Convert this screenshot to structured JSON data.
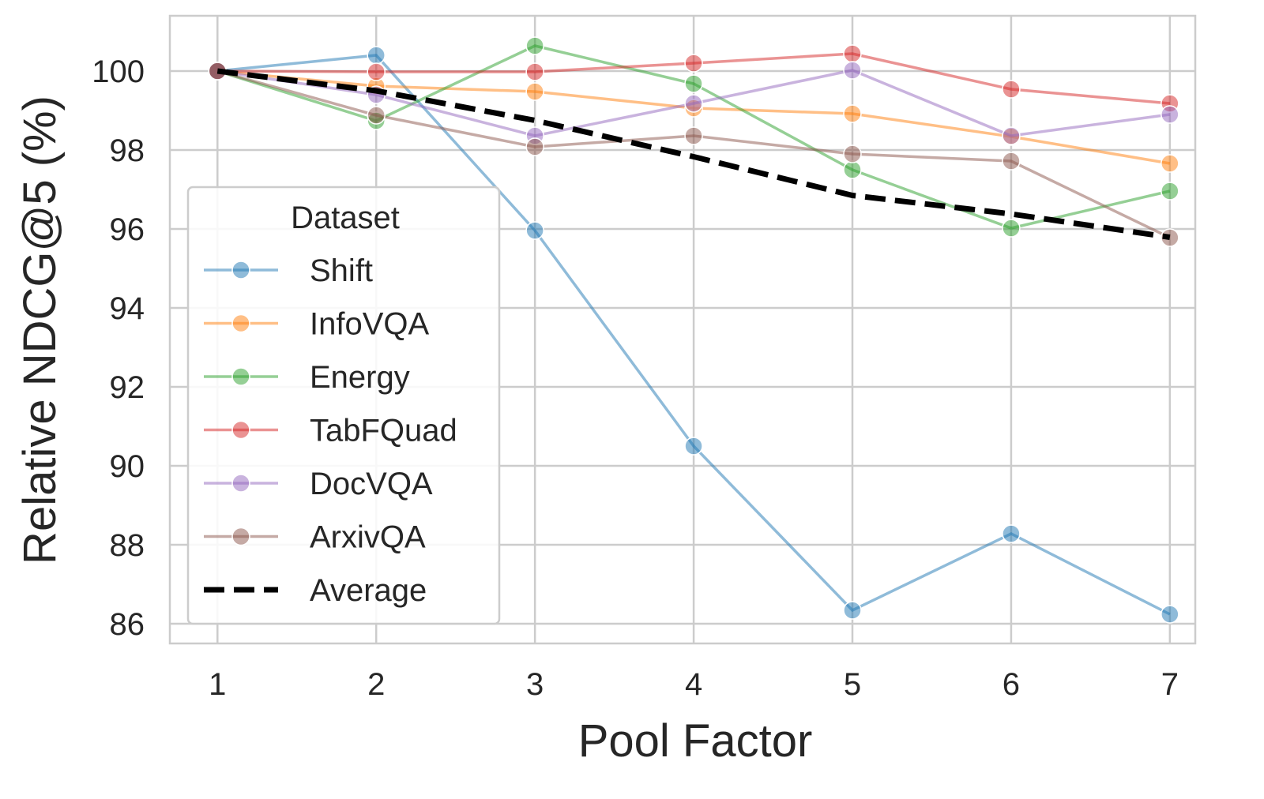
{
  "chart_data": {
    "type": "line",
    "title": "",
    "xlabel": "Pool Factor",
    "ylabel": "Relative NDCG@5 (%)",
    "x": [
      1,
      2,
      3,
      4,
      5,
      6,
      7
    ],
    "x_ticks": [
      "1",
      "2",
      "3",
      "4",
      "5",
      "6",
      "7"
    ],
    "y_ticks": [
      "86",
      "88",
      "90",
      "92",
      "94",
      "96",
      "98",
      "100"
    ],
    "xlim": [
      0.7,
      7.16
    ],
    "ylim": [
      85.5,
      101.4
    ],
    "grid": true,
    "legend": {
      "title": "Dataset",
      "placement": "left"
    },
    "series": [
      {
        "name": "Shift",
        "color": "#1f77b4",
        "values": [
          100,
          100.4,
          95.96,
          90.5,
          86.34,
          88.28,
          86.24
        ]
      },
      {
        "name": "InfoVQA",
        "color": "#ff7f0e",
        "values": [
          100,
          99.62,
          99.48,
          99.06,
          98.92,
          98.34,
          97.66
        ]
      },
      {
        "name": "Energy",
        "color": "#2ca02c",
        "values": [
          100,
          98.74,
          100.64,
          99.68,
          97.5,
          96.02,
          96.96
        ]
      },
      {
        "name": "TabFQuad",
        "color": "#d62728",
        "values": [
          100,
          99.98,
          99.98,
          100.2,
          100.44,
          99.54,
          99.18
        ]
      },
      {
        "name": "DocVQA",
        "color": "#9467bd",
        "values": [
          100,
          99.4,
          98.36,
          99.18,
          100.02,
          98.36,
          98.9
        ]
      },
      {
        "name": "ArxivQA",
        "color": "#8c564b",
        "values": [
          100,
          98.88,
          98.08,
          98.36,
          97.9,
          97.72,
          95.78
        ]
      },
      {
        "name": "Average",
        "color": "#000000",
        "dashed": true,
        "values": [
          100,
          99.5,
          98.75,
          97.83,
          96.85,
          96.38,
          95.79
        ]
      }
    ]
  }
}
